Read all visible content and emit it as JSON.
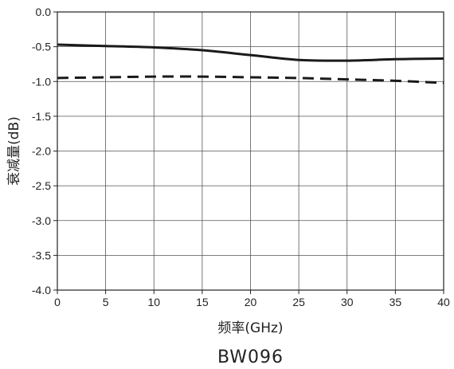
{
  "chart_data": {
    "type": "line",
    "xlabel": "频率(GHz)",
    "ylabel": "衰减量(dB)",
    "caption": "BW096",
    "xlim": [
      0,
      40
    ],
    "ylim": [
      -4.0,
      0.0
    ],
    "x_ticks": [
      "0",
      "5",
      "10",
      "15",
      "20",
      "25",
      "30",
      "35",
      "40"
    ],
    "y_ticks": [
      "0.0",
      "-0.5",
      "-1.0",
      "-1.5",
      "-2.0",
      "-2.5",
      "-3.0",
      "-3.5",
      "-4.0"
    ],
    "grid": true,
    "series": [
      {
        "style": "solid",
        "color": "#1a1a1a",
        "x": [
          0,
          5,
          10,
          15,
          20,
          25,
          30,
          35,
          40
        ],
        "y": [
          -0.47,
          -0.49,
          -0.51,
          -0.55,
          -0.62,
          -0.69,
          -0.7,
          -0.68,
          -0.67
        ]
      },
      {
        "style": "dashed",
        "color": "#1a1a1a",
        "x": [
          0,
          5,
          10,
          15,
          20,
          25,
          30,
          35,
          40
        ],
        "y": [
          -0.95,
          -0.94,
          -0.93,
          -0.93,
          -0.94,
          -0.95,
          -0.97,
          -0.99,
          -1.02
        ]
      }
    ]
  }
}
